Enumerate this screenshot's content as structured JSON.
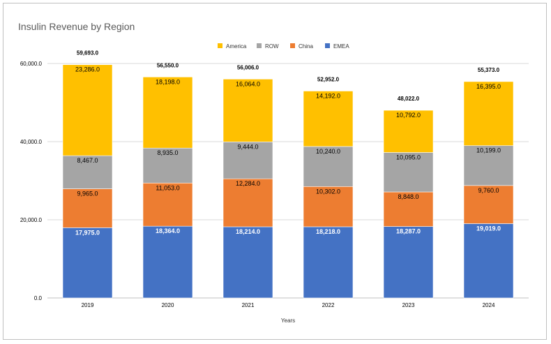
{
  "chart_data": {
    "type": "bar",
    "stacked": true,
    "title": "Insulin Revenue by Region",
    "xlabel": "Years",
    "ylabel": "",
    "categories": [
      "2019",
      "2020",
      "2021",
      "2022",
      "2023",
      "2024"
    ],
    "ylim": [
      0,
      60000
    ],
    "yticks": [
      "0.0",
      "20,000.0",
      "40,000.0",
      "60,000.0"
    ],
    "grid": true,
    "legend_position": "top",
    "legend_order": [
      "America",
      "ROW",
      "China",
      "EMEA"
    ],
    "series": [
      {
        "name": "EMEA",
        "color": "#4472c4",
        "label_color": "#ffffff",
        "label_weight": "bold",
        "values": [
          17975,
          18364,
          18214,
          18218,
          18287,
          19019
        ],
        "labels": [
          "17,975.0",
          "18,364.0",
          "18,214.0",
          "18,218.0",
          "18,287.0",
          "19,019.0"
        ]
      },
      {
        "name": "China",
        "color": "#ed7d31",
        "label_color": "#000000",
        "label_weight": "normal",
        "values": [
          9965,
          11053,
          12284,
          10302,
          8848,
          9760
        ],
        "labels": [
          "9,965.0",
          "11,053.0",
          "12,284.0",
          "10,302.0",
          "8,848.0",
          "9,760.0"
        ]
      },
      {
        "name": "ROW",
        "color": "#a5a5a5",
        "label_color": "#000000",
        "label_weight": "normal",
        "values": [
          8467,
          8935,
          9444,
          10240,
          10095,
          10199
        ],
        "labels": [
          "8,467.0",
          "8,935.0",
          "9,444.0",
          "10,240.0",
          "10,095.0",
          "10,199.0"
        ]
      },
      {
        "name": "America",
        "color": "#ffc000",
        "label_color": "#000000",
        "label_weight": "normal",
        "values": [
          23286,
          18198,
          16064,
          14192,
          10792,
          16395
        ],
        "labels": [
          "23,286.0",
          "18,198.0",
          "16,064.0",
          "14,192.0",
          "10,792.0",
          "16,395.0"
        ]
      }
    ],
    "totals": [
      59693,
      56550,
      56006,
      52952,
      48022,
      55373
    ],
    "total_labels": [
      "59,693.0",
      "56,550.0",
      "56,006.0",
      "52,952.0",
      "48,022.0",
      "55,373.0"
    ]
  }
}
